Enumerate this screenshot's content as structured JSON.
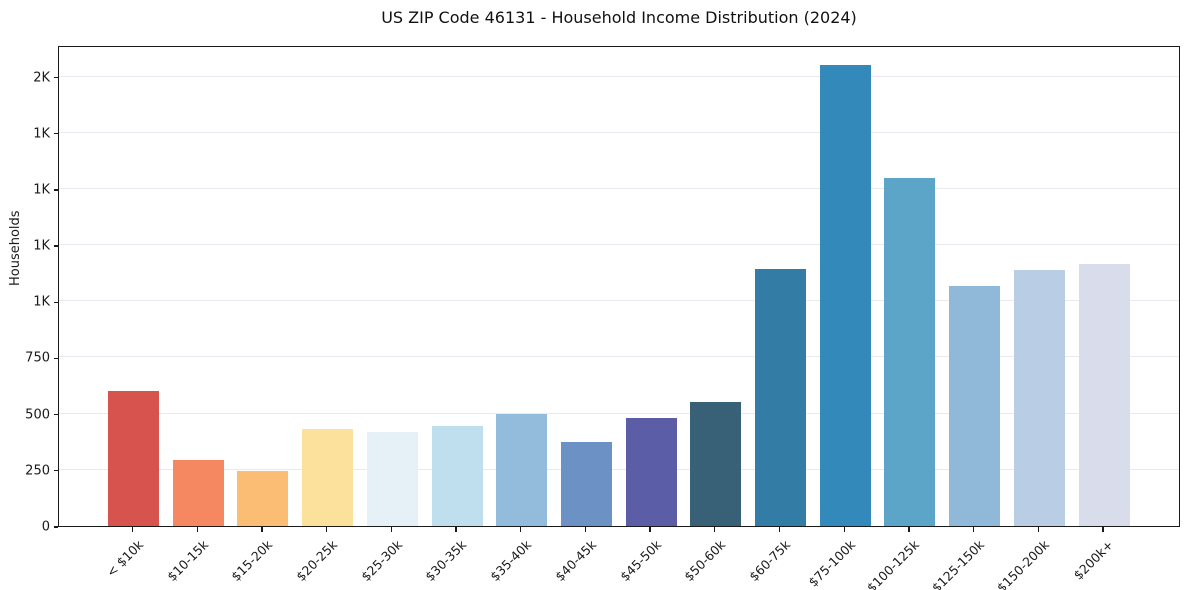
{
  "chart_data": {
    "type": "bar",
    "title": "US ZIP Code 46131 - Household Income Distribution (2024)",
    "xlabel": "",
    "ylabel": "Households",
    "categories": [
      "< $10k",
      "$10-15k",
      "$15-20k",
      "$20-25k",
      "$25-30k",
      "$30-35k",
      "$35-40k",
      "$40-45k",
      "$45-50k",
      "$50-60k",
      "$60-75k",
      "$75-100k",
      "$100-125k",
      "$125-150k",
      "$150-200k",
      "$200k+"
    ],
    "values": [
      600,
      295,
      245,
      430,
      420,
      445,
      500,
      375,
      480,
      550,
      1145,
      2050,
      1550,
      1070,
      1140,
      1165
    ],
    "bar_colors": [
      "#d6534e",
      "#f58761",
      "#fbbd74",
      "#fce19c",
      "#e5f1f6",
      "#c0dfee",
      "#92bbdc",
      "#6b91c5",
      "#5b5ea7",
      "#386076",
      "#337ca6",
      "#3489bb",
      "#5ca5c9",
      "#90b9d9",
      "#b9cde4",
      "#d9dcea"
    ],
    "ylim": [
      0,
      2140
    ],
    "yticks": [
      {
        "value": 0,
        "label": "0"
      },
      {
        "value": 250,
        "label": "250"
      },
      {
        "value": 500,
        "label": "500"
      },
      {
        "value": 750,
        "label": "750"
      },
      {
        "value": 1000,
        "label": "1K"
      },
      {
        "value": 1250,
        "label": "1K"
      },
      {
        "value": 1500,
        "label": "1K"
      },
      {
        "value": 1750,
        "label": "1K"
      },
      {
        "value": 2000,
        "label": "2K"
      }
    ],
    "grid": "horizontal",
    "legend": "none",
    "spine_color": "#1a1a1a",
    "grid_color": "#e9e9ef",
    "background_color": "#ffffff"
  }
}
